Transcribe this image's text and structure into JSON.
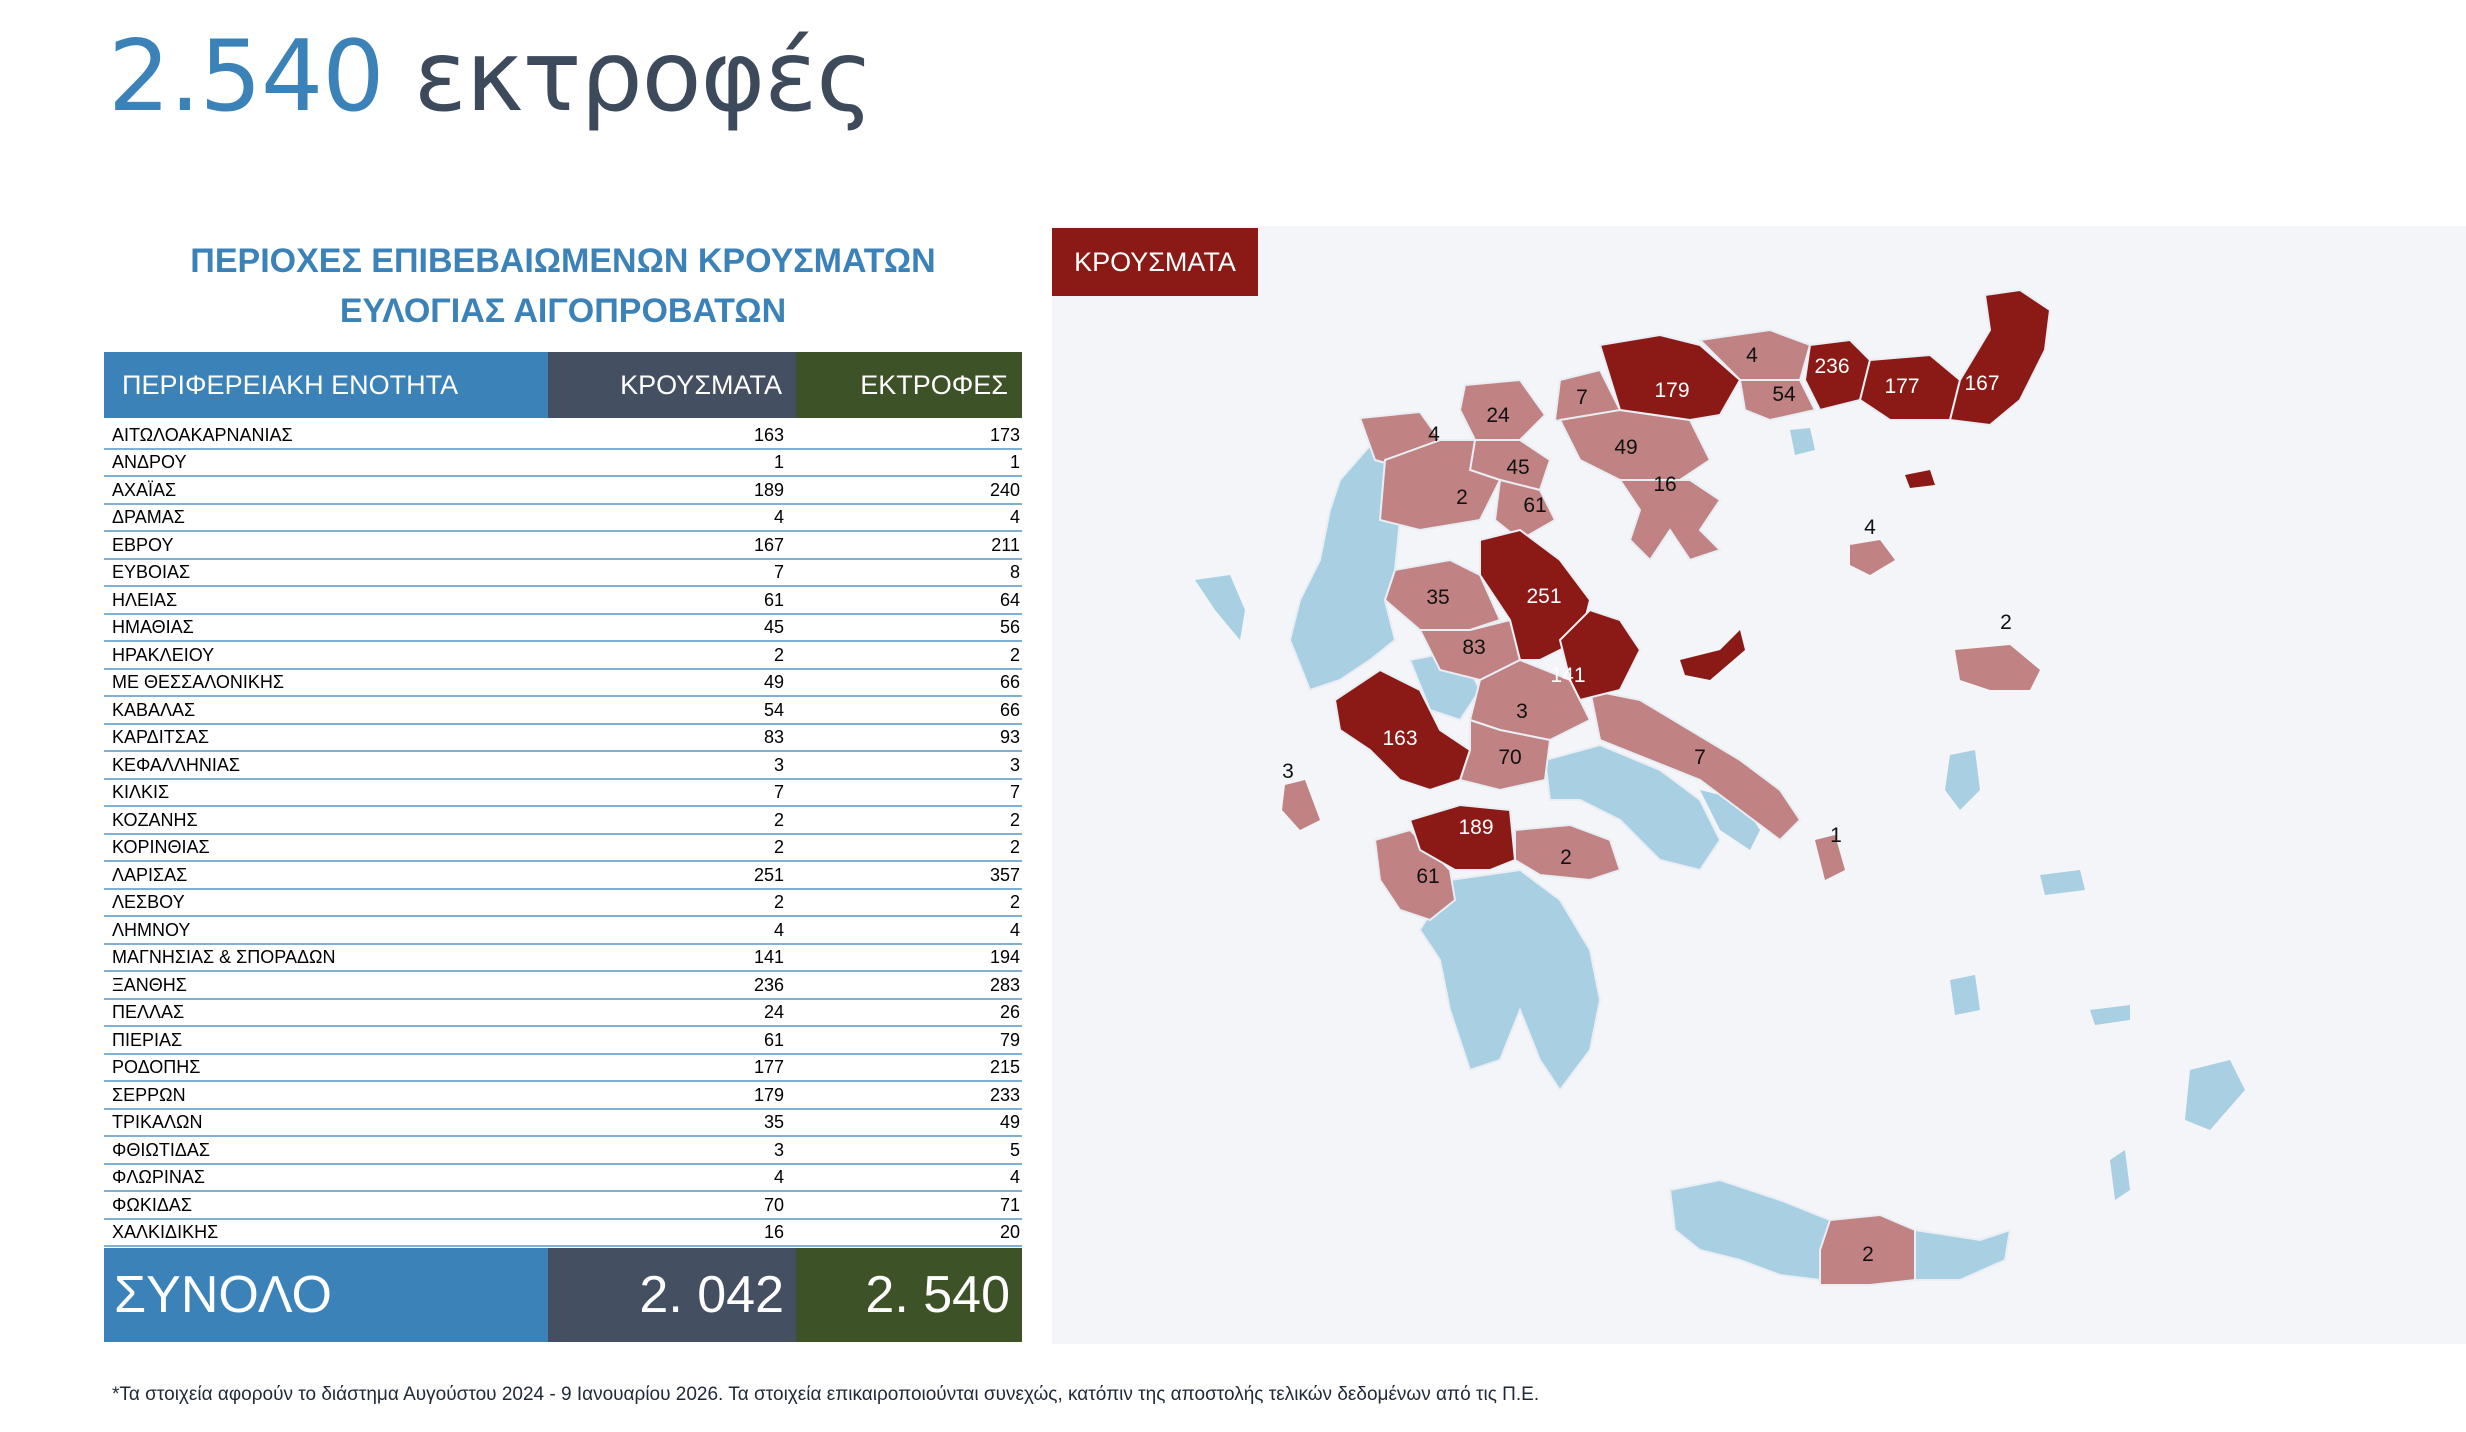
{
  "headline": {
    "number": "2.540",
    "word": "εκτροφές"
  },
  "table_title": {
    "line1": "ΠΕΡΙΟΧΕΣ ΕΠΙΒΕΒΑΙΩΜΕΝΩΝ ΚΡΟΥΣΜΑΤΩΝ",
    "line2": "ΕΥΛΟΓΙΑΣ ΑΙΓΟΠΡΟΒΑΤΩΝ"
  },
  "colors": {
    "blue": "#3b82b8",
    "slate": "#454f62",
    "green": "#3d5226",
    "dark_red": "#8b1a17",
    "mid_red": "#c08282",
    "light_blue": "#a9cfe3"
  },
  "chart_data": {
    "type": "table",
    "columns": [
      "ΠΕΡΙΦΕΡΕΙΑΚΗ ΕΝΟΤΗΤΑ",
      "ΚΡΟΥΣΜΑΤΑ",
      "ΕΚΤΡΟΦΕΣ"
    ],
    "rows": [
      {
        "region": "ΑΙΤΩΛΟΑΚΑΡΝΑΝΙΑΣ",
        "cases": "163",
        "farms": "173"
      },
      {
        "region": "ΑΝΔΡΟΥ",
        "cases": "1",
        "farms": "1"
      },
      {
        "region": "ΑΧΑΪΑΣ",
        "cases": "189",
        "farms": "240"
      },
      {
        "region": "ΔΡΑΜΑΣ",
        "cases": "4",
        "farms": "4"
      },
      {
        "region": "ΕΒΡΟΥ",
        "cases": "167",
        "farms": "211"
      },
      {
        "region": "ΕΥΒΟΙΑΣ",
        "cases": "7",
        "farms": "8"
      },
      {
        "region": "ΗΛΕΙΑΣ",
        "cases": "61",
        "farms": "64"
      },
      {
        "region": "ΗΜΑΘΙΑΣ",
        "cases": "45",
        "farms": "56"
      },
      {
        "region": "ΗΡΑΚΛΕΙΟΥ",
        "cases": "2",
        "farms": "2"
      },
      {
        "region": "ΜΕ ΘΕΣΣΑΛΟΝΙΚΗΣ",
        "cases": "49",
        "farms": "66"
      },
      {
        "region": "ΚΑΒΑΛΑΣ",
        "cases": "54",
        "farms": "66"
      },
      {
        "region": "ΚΑΡΔΙΤΣΑΣ",
        "cases": "83",
        "farms": "93"
      },
      {
        "region": "ΚΕΦΑΛΛΗΝΙΑΣ",
        "cases": "3",
        "farms": "3"
      },
      {
        "region": "ΚΙΛΚΙΣ",
        "cases": "7",
        "farms": "7"
      },
      {
        "region": "ΚΟΖΑΝΗΣ",
        "cases": "2",
        "farms": "2"
      },
      {
        "region": "ΚΟΡΙΝΘΙΑΣ",
        "cases": "2",
        "farms": "2"
      },
      {
        "region": "ΛΑΡΙΣΑΣ",
        "cases": "251",
        "farms": "357"
      },
      {
        "region": "ΛΕΣΒΟΥ",
        "cases": "2",
        "farms": "2"
      },
      {
        "region": "ΛΗΜΝΟΥ",
        "cases": "4",
        "farms": "4"
      },
      {
        "region": "ΜΑΓΝΗΣΙΑΣ & ΣΠΟΡΑΔΩΝ",
        "cases": "141",
        "farms": "194"
      },
      {
        "region": "ΞΑΝΘΗΣ",
        "cases": "236",
        "farms": "283"
      },
      {
        "region": "ΠΕΛΛΑΣ",
        "cases": "24",
        "farms": "26"
      },
      {
        "region": "ΠΙΕΡΙΑΣ",
        "cases": "61",
        "farms": "79"
      },
      {
        "region": "ΡΟΔΟΠΗΣ",
        "cases": "177",
        "farms": "215"
      },
      {
        "region": "ΣΕΡΡΩΝ",
        "cases": "179",
        "farms": "233"
      },
      {
        "region": "ΤΡΙΚΑΛΩΝ",
        "cases": "35",
        "farms": "49"
      },
      {
        "region": "ΦΘΙΩΤΙΔΑΣ",
        "cases": "3",
        "farms": "5"
      },
      {
        "region": "ΦΛΩΡΙΝΑΣ",
        "cases": "4",
        "farms": "4"
      },
      {
        "region": "ΦΩΚΙΔΑΣ",
        "cases": "70",
        "farms": "71"
      },
      {
        "region": "ΧΑΛΚΙΔΙΚΗΣ",
        "cases": "16",
        "farms": "20"
      }
    ],
    "totals": {
      "label": "ΣΥΝΟΛΟ",
      "cases": "2. 042",
      "farms": "2. 540"
    }
  },
  "map": {
    "tag": "ΚΡΟΥΣΜΑΤΑ",
    "labels": [
      "179",
      "4",
      "236",
      "177",
      "167",
      "54",
      "7",
      "24",
      "4",
      "49",
      "45",
      "16",
      "2",
      "61",
      "4",
      "2",
      "35",
      "251",
      "83",
      "141",
      "3",
      "163",
      "7",
      "70",
      "3",
      "1",
      "189",
      "61",
      "2",
      "2"
    ]
  },
  "footnote": "*Τα στοιχεία αφορούν το διάστημα Αυγούστου 2024 - 9 Ιανουαρίου 2026. Τα στοιχεία επικαιροποιούνται συνεχώς, κατόπιν της αποστολής τελικών δεδομένων από τις Π.Ε."
}
